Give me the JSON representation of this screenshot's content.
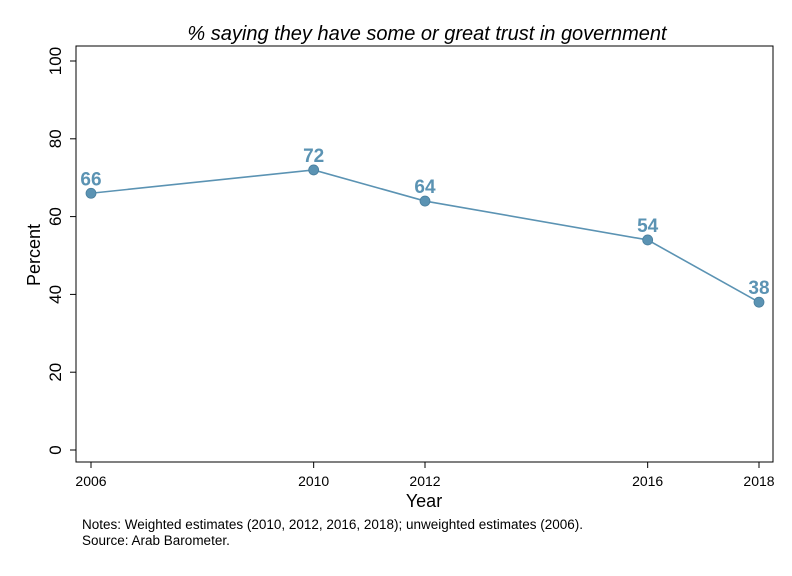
{
  "chart_data": {
    "type": "line",
    "title": "% saying they have some or great trust in government",
    "xlabel": "Year",
    "ylabel": "Percent",
    "x": [
      2006,
      2010,
      2012,
      2016,
      2018
    ],
    "x_tick_labels": [
      "2006",
      "2010",
      "2012",
      "2016",
      "2018"
    ],
    "y_ticks": [
      0,
      20,
      40,
      60,
      80,
      100
    ],
    "xlim": [
      2006,
      2018
    ],
    "ylim": [
      0,
      100
    ],
    "grid": false,
    "series": [
      {
        "values": [
          66,
          72,
          64,
          54,
          38
        ],
        "color": "#5b93b3",
        "labels": [
          "66",
          "72",
          "64",
          "54",
          "38"
        ]
      }
    ],
    "label_color": "#5b93b3"
  },
  "notes": {
    "line1": "Notes: Weighted estimates (2010, 2012, 2016, 2018); unweighted estimates (2006).",
    "line2": "Source: Arab Barometer."
  }
}
